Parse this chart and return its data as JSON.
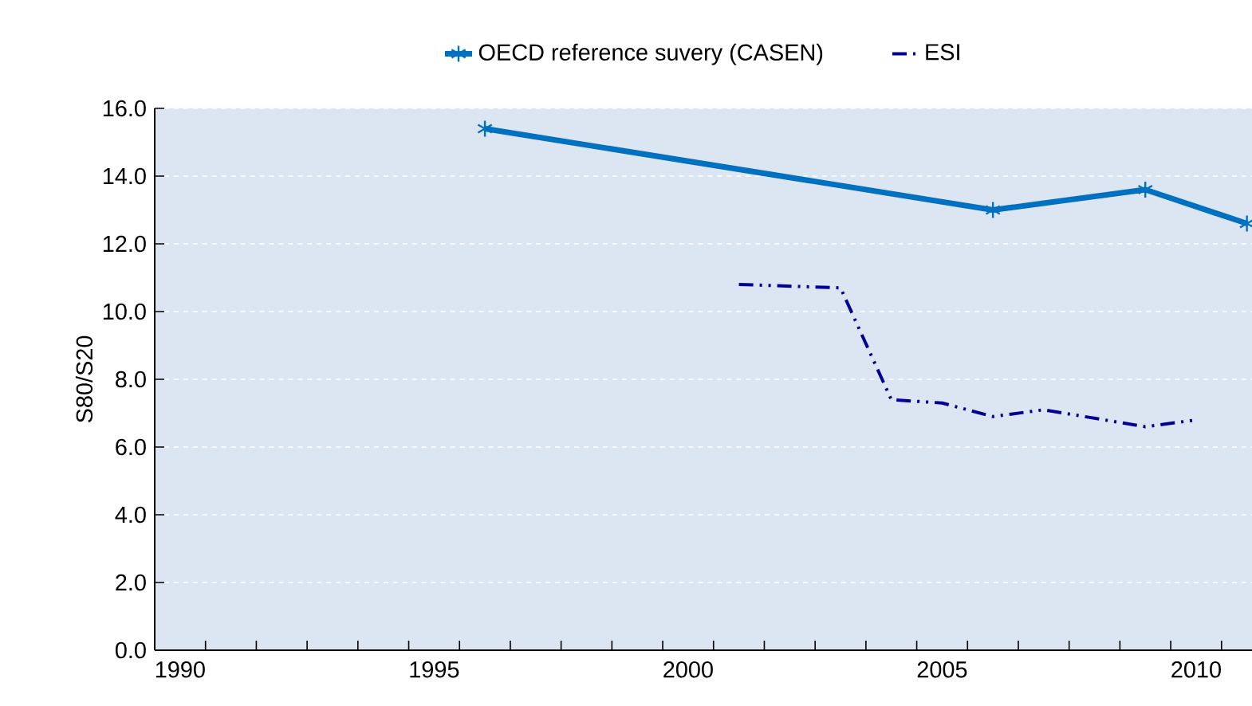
{
  "chart_data": {
    "type": "line",
    "ylabel": "S80/S20",
    "x": [
      1996,
      2006,
      2009,
      2011
    ],
    "series": [
      {
        "name": "OECD reference suvery (CASEN)",
        "color": "#0070c0",
        "marker": "cross",
        "line_style": "solid",
        "values": [
          15.4,
          13.0,
          13.6,
          12.6
        ]
      },
      {
        "name": "ESI",
        "color": "#000099",
        "marker": "none",
        "line_style": "dashed",
        "x": [
          2001,
          2003,
          2004,
          2005,
          2006,
          2007,
          2009,
          2010
        ],
        "values": [
          10.8,
          10.7,
          7.4,
          7.3,
          6.9,
          7.1,
          6.6,
          6.8
        ]
      }
    ],
    "xlim": [
      1989.5,
      2011.1
    ],
    "xticks": [
      1990,
      1995,
      2000,
      2005,
      2010
    ],
    "ylim": [
      0,
      16
    ],
    "yticks": [
      {
        "value": 0,
        "label": "0.0"
      },
      {
        "value": 2,
        "label": "2.0"
      },
      {
        "value": 4,
        "label": "4.0"
      },
      {
        "value": 6,
        "label": "6.0"
      },
      {
        "value": 8,
        "label": "8.0"
      },
      {
        "value": 10,
        "label": "10.0"
      },
      {
        "value": 12,
        "label": "12.0"
      },
      {
        "value": 14,
        "label": "14.0"
      },
      {
        "value": 16,
        "label": "16.0"
      }
    ],
    "grid": "y",
    "legend": "top"
  }
}
